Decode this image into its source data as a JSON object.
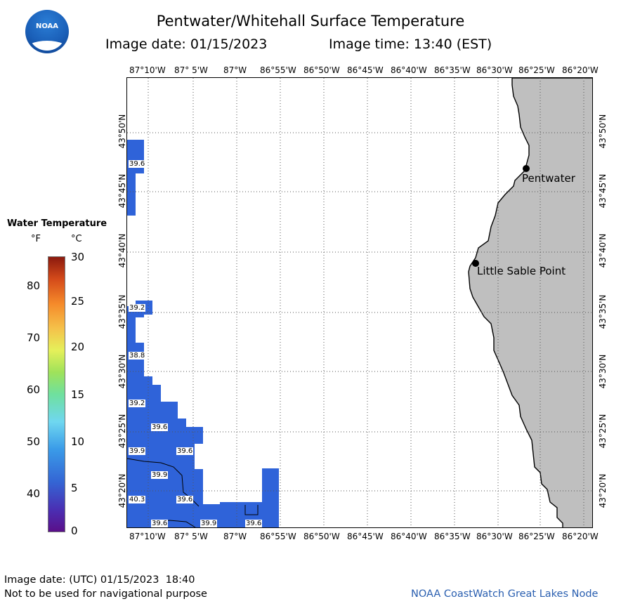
{
  "header": {
    "title": "Pentwater/Whitehall Surface Temperature",
    "image_date": "Image date: 01/15/2023",
    "image_time": "Image time: 13:40 (EST)",
    "logo_text": "NOAA"
  },
  "map": {
    "lon_labels": [
      "87°10'W",
      "87° 5'W",
      "87°W",
      "86°55'W",
      "86°50'W",
      "86°45'W",
      "86°40'W",
      "86°35'W",
      "86°30'W",
      "86°25'W",
      "86°20'W"
    ],
    "lat_labels": [
      "43°50'N",
      "43°45'N",
      "43°40'N",
      "43°35'N",
      "43°30'N",
      "43°25'N",
      "43°20'N"
    ],
    "places": [
      {
        "name": "Pentwater"
      },
      {
        "name": "Little Sable Point"
      }
    ],
    "water_temp_labels_f": [
      "39.6",
      "39.2",
      "38.8",
      "39.2",
      "39.6",
      "39.9",
      "39.6",
      "39.9",
      "40.3",
      "39.6",
      "39.6",
      "39.9",
      "39.6"
    ],
    "water_color": "#2f63d9",
    "land_color": "#bfbfbf"
  },
  "legend": {
    "title": "Water Temperature",
    "unit_f": "°F",
    "unit_c": "°C",
    "f_ticks": [
      "80",
      "70",
      "60",
      "50",
      "40"
    ],
    "c_ticks": [
      "30",
      "25",
      "20",
      "15",
      "10",
      "5",
      "0"
    ]
  },
  "footer": {
    "utc_date": "Image date: (UTC) 01/15/2023  18:40",
    "disclaimer": "Not to be used for navigational purpose",
    "credit": "NOAA CoastWatch Great Lakes Node"
  }
}
